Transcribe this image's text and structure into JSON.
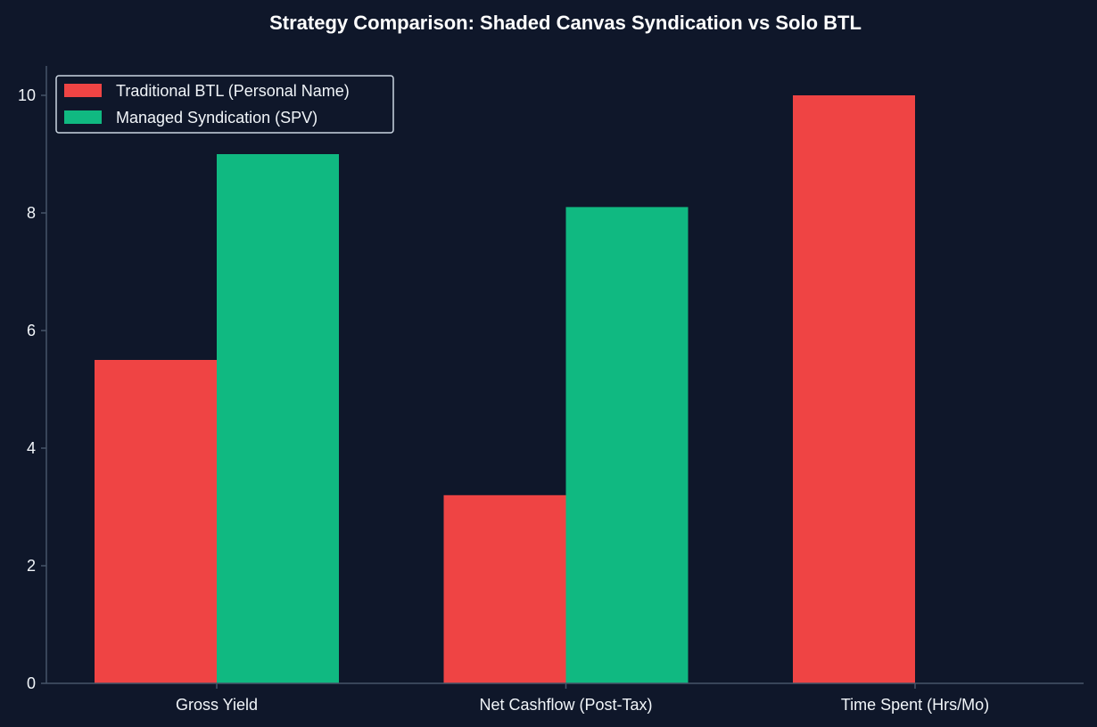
{
  "chart_data": {
    "type": "bar",
    "title": "Strategy Comparison: Shaded Canvas Syndication vs Solo BTL",
    "xlabel": "",
    "ylabel": "",
    "categories": [
      "Gross Yield",
      "Net Cashflow (Post-Tax)",
      "Time Spent (Hrs/Mo)"
    ],
    "series": [
      {
        "name": "Traditional BTL (Personal Name)",
        "values": [
          5.5,
          3.2,
          10
        ],
        "color": "#ef4444"
      },
      {
        "name": "Managed Syndication (SPV)",
        "values": [
          9,
          8.1,
          0
        ],
        "color": "#10b981"
      }
    ],
    "ylim": [
      0,
      10.5
    ],
    "yticks": [
      0,
      2,
      4,
      6,
      8,
      10
    ],
    "grid": false,
    "legend_position": "top-left",
    "colors": {
      "background": "#0f172a",
      "axis": "#475569",
      "text": "#f1f5f9",
      "legend_border": "#cbd5e1"
    }
  }
}
